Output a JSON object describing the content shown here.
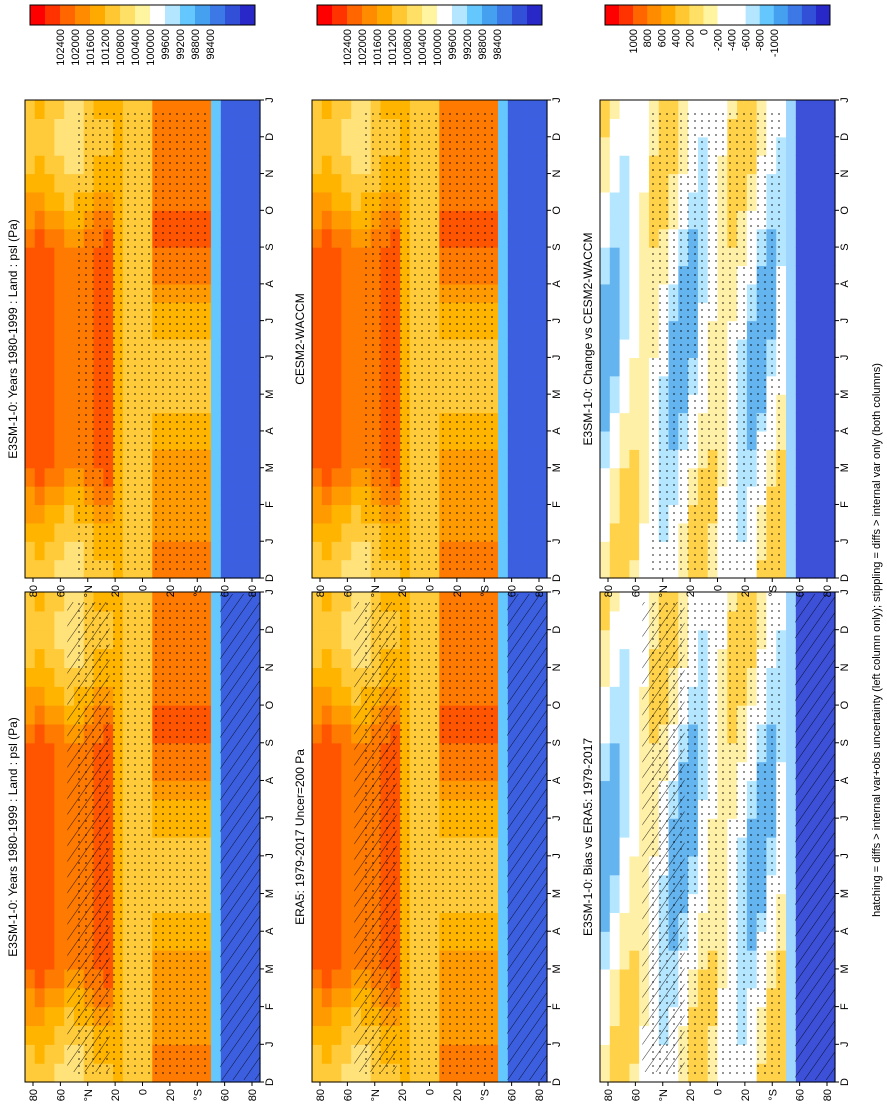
{
  "footnote": "hatching = diffs > internal var+obs uncertainty (left column only); stippling = diffs > internal var only (both columns)",
  "month_labels": [
    "D",
    "J",
    "F",
    "M",
    "A",
    "M",
    "J",
    "J",
    "A",
    "S",
    "O",
    "N",
    "D",
    "J"
  ],
  "lat_labels": [
    "80",
    "60",
    "°N",
    "20",
    "0",
    "20",
    "°S",
    "60",
    "80"
  ],
  "colorbars": [
    {
      "name": "cb-col1-row1",
      "labels": [
        "102400",
        "102000",
        "101600",
        "101200",
        "100800",
        "100400",
        "100000",
        "99600",
        "99200",
        "98800",
        "98400"
      ],
      "colors": [
        "#ff0000",
        "#ff3300",
        "#ff6600",
        "#ff8c00",
        "#ffaa00",
        "#ffc832",
        "#ffe066",
        "#fff5a0",
        "#ffffff",
        "#b4e6ff",
        "#64c8ff",
        "#46a0f0",
        "#3c78e6",
        "#3250d7",
        "#2828c8"
      ]
    },
    {
      "name": "cb-col1-row2",
      "labels": [
        "102400",
        "102000",
        "101600",
        "101200",
        "100800",
        "100400",
        "100000",
        "99600",
        "99200",
        "98800",
        "98400"
      ],
      "colors": [
        "#ff0000",
        "#ff3300",
        "#ff6600",
        "#ff8c00",
        "#ffaa00",
        "#ffc832",
        "#ffe066",
        "#fff5a0",
        "#ffffff",
        "#b4e6ff",
        "#64c8ff",
        "#46a0f0",
        "#3c78e6",
        "#3250d7",
        "#2828c8"
      ]
    },
    {
      "name": "cb-col1-row3",
      "labels": [
        "1000",
        "800",
        "600",
        "400",
        "200",
        "0",
        "-200",
        "-400",
        "-600",
        "-800",
        "-1000"
      ],
      "colors": [
        "#ff0000",
        "#ff3300",
        "#ff6600",
        "#ff8c00",
        "#ffaa00",
        "#ffc832",
        "#ffe066",
        "#fff5a0",
        "#ffffff",
        "#ffffff",
        "#b4e6ff",
        "#64c8ff",
        "#46a0f0",
        "#3c78e6",
        "#3250d7",
        "#2828c8"
      ]
    },
    {
      "name": "cb-col2-row1",
      "labels": [
        "102400",
        "102000",
        "101600",
        "101200",
        "100800",
        "100400",
        "100000",
        "99600",
        "99200",
        "98800",
        "98400"
      ],
      "colors": [
        "#ff0000",
        "#ff3300",
        "#ff6600",
        "#ff8c00",
        "#ffaa00",
        "#ffc832",
        "#ffe066",
        "#fff5a0",
        "#ffffff",
        "#b4e6ff",
        "#64c8ff",
        "#46a0f0",
        "#3c78e6",
        "#3250d7",
        "#2828c8"
      ]
    },
    {
      "name": "cb-col2-row2",
      "labels": [
        "102400",
        "102000",
        "101600",
        "101200",
        "100800",
        "100400",
        "100000",
        "99600",
        "99200",
        "98800",
        "98400"
      ],
      "colors": [
        "#ff0000",
        "#ff3300",
        "#ff6600",
        "#ff8c00",
        "#ffaa00",
        "#ffc832",
        "#ffe066",
        "#fff5a0",
        "#ffffff",
        "#b4e6ff",
        "#64c8ff",
        "#46a0f0",
        "#3c78e6",
        "#3250d7",
        "#2828c8"
      ]
    },
    {
      "name": "cb-col2-row3",
      "labels": [
        "1000",
        "800",
        "600",
        "400",
        "200",
        "0",
        "-200",
        "-400",
        "-600",
        "-800",
        "-1000"
      ],
      "colors": [
        "#ff0000",
        "#ff3300",
        "#ff6600",
        "#ff8c00",
        "#ffaa00",
        "#ffc832",
        "#ffe066",
        "#fff5a0",
        "#ffffff",
        "#ffffff",
        "#b4e6ff",
        "#64c8ff",
        "#46a0f0",
        "#3c78e6",
        "#3250d7",
        "#2828c8"
      ]
    }
  ],
  "chart_data": [
    {
      "type": "heatmap",
      "panel": "col1-row1",
      "title": "E3SM-1-0: Years 1980-1999 : Land : psl (Pa)",
      "x": "month",
      "y": "latitude",
      "units": "Pa",
      "range": [
        98400,
        102400
      ],
      "hatching": true,
      "stippling": true,
      "field": "abs"
    },
    {
      "type": "heatmap",
      "panel": "col1-row2",
      "title": "ERA5: 1979-2017 Uncer=200 Pa",
      "x": "month",
      "y": "latitude",
      "units": "Pa",
      "range": [
        98400,
        102400
      ],
      "hatching": true,
      "stippling": true,
      "field": "abs"
    },
    {
      "type": "heatmap",
      "panel": "col1-row3",
      "title": "E3SM-1-0: Bias vs ERA5: 1979-2017",
      "x": "month",
      "y": "latitude",
      "units": "Pa",
      "range": [
        -1000,
        1000
      ],
      "hatching": true,
      "stippling": true,
      "field": "diff"
    },
    {
      "type": "heatmap",
      "panel": "col2-row1",
      "title": "E3SM-1-0: Years 1980-1999 : Land : psl (Pa)",
      "x": "month",
      "y": "latitude",
      "units": "Pa",
      "range": [
        98400,
        102400
      ],
      "hatching": false,
      "stippling": true,
      "field": "abs"
    },
    {
      "type": "heatmap",
      "panel": "col2-row2",
      "title": "CESM2-WACCM",
      "x": "month",
      "y": "latitude",
      "units": "Pa",
      "range": [
        98400,
        102400
      ],
      "hatching": false,
      "stippling": true,
      "field": "abs"
    },
    {
      "type": "heatmap",
      "panel": "col2-row3",
      "title": "E3SM-1-0: Change vs CESM2-WACCM",
      "x": "month",
      "y": "latitude",
      "units": "Pa",
      "range": [
        -1000,
        1000
      ],
      "hatching": false,
      "stippling": true,
      "field": "diff"
    }
  ]
}
